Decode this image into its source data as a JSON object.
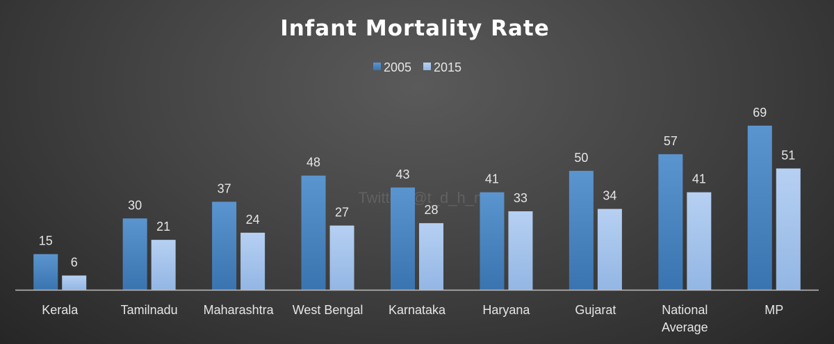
{
  "chart_data": {
    "type": "bar",
    "title": "Infant Mortality Rate",
    "categories": [
      [
        "Kerala"
      ],
      [
        "Tamilnadu"
      ],
      [
        "Maharashtra"
      ],
      [
        "West Bengal"
      ],
      [
        "Karnataka"
      ],
      [
        "Haryana"
      ],
      [
        "Gujarat"
      ],
      [
        "National",
        "Average"
      ],
      [
        "MP"
      ]
    ],
    "series": [
      {
        "name": "2005",
        "values": [
          15,
          30,
          37,
          48,
          43,
          41,
          50,
          57,
          69
        ],
        "color": "#4a86c2"
      },
      {
        "name": "2015",
        "values": [
          6,
          21,
          24,
          27,
          28,
          33,
          34,
          41,
          51
        ],
        "color": "#a9c5ec"
      }
    ],
    "ylim": [
      0,
      78
    ],
    "xlabel": "",
    "ylabel": "",
    "grid": false,
    "legend_position": "top-center",
    "watermark": "Twitter: @t_d_h_n_a"
  }
}
